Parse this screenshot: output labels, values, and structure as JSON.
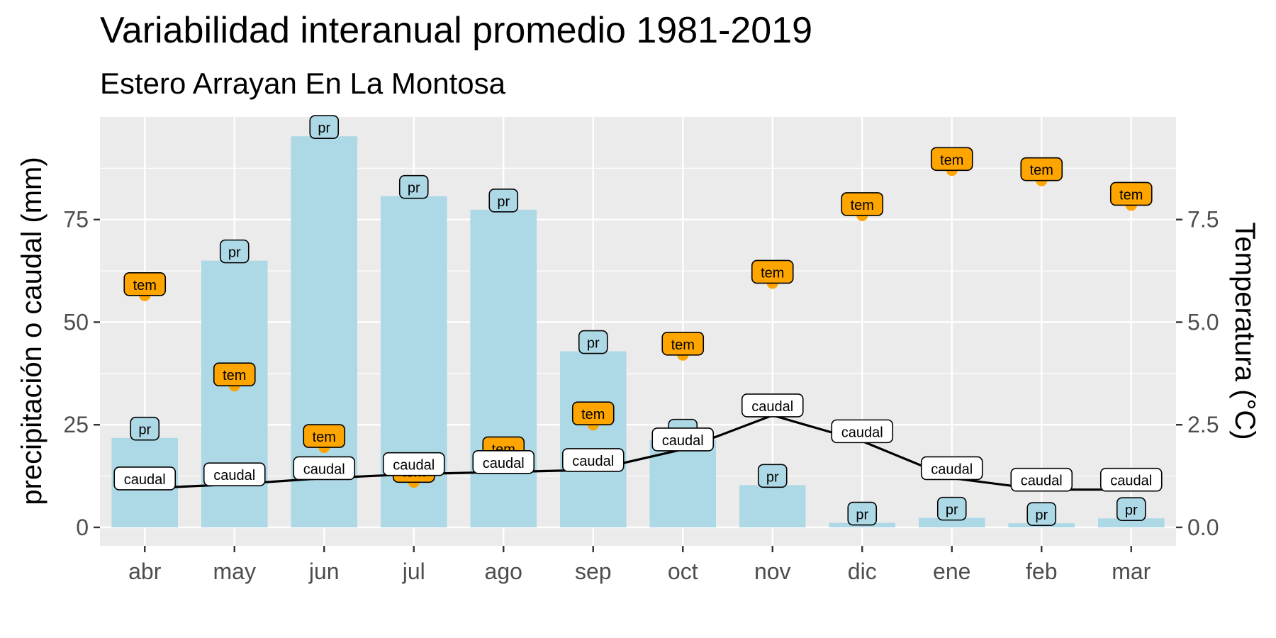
{
  "chart_data": {
    "type": "bar",
    "title": "Variabilidad interanual promedio 1981-2019",
    "subtitle": "Estero Arrayan En La Montosa",
    "ylabel": "precipitación o caudal (mm)",
    "ylabel_right": "Temperatura (°C)",
    "categories": [
      "abr",
      "may",
      "jun",
      "jul",
      "ago",
      "sep",
      "oct",
      "nov",
      "dic",
      "ene",
      "feb",
      "mar"
    ],
    "ylim": [
      -4.5,
      100
    ],
    "ylim_right": [
      -0.45,
      10.0
    ],
    "yticks": [
      0,
      25,
      50,
      75
    ],
    "yticks_right": [
      0.0,
      2.5,
      5.0,
      7.5
    ],
    "ytick_labels": [
      "0",
      "25",
      "50",
      "75"
    ],
    "ytick_labels_right": [
      "0.0",
      "2.5",
      "5.0",
      "7.5"
    ],
    "grid": true,
    "legend": "none",
    "series": [
      {
        "name": "pr",
        "type": "bar",
        "axis": "left",
        "color": "#ADD8E6",
        "values": [
          21.8,
          65.0,
          95.3,
          80.7,
          77.4,
          42.9,
          21.3,
          10.3,
          1.1,
          2.3,
          1.0,
          2.2
        ]
      },
      {
        "name": "caudal",
        "type": "line",
        "axis": "left",
        "color": "#000000",
        "values": [
          9.5,
          10.5,
          12.0,
          13.0,
          13.5,
          14.0,
          19.0,
          27.3,
          21.0,
          12.0,
          9.2,
          9.2
        ]
      },
      {
        "name": "tem",
        "type": "scatter",
        "axis": "right",
        "color": "#FFA500",
        "values": [
          5.65,
          3.45,
          1.95,
          1.1,
          1.65,
          2.5,
          4.2,
          5.95,
          7.6,
          8.7,
          8.45,
          7.85
        ]
      }
    ],
    "label_fill": {
      "pr": "#ADD8E6",
      "caudal": "#FFFFFF",
      "tem": "#FFA500"
    }
  }
}
